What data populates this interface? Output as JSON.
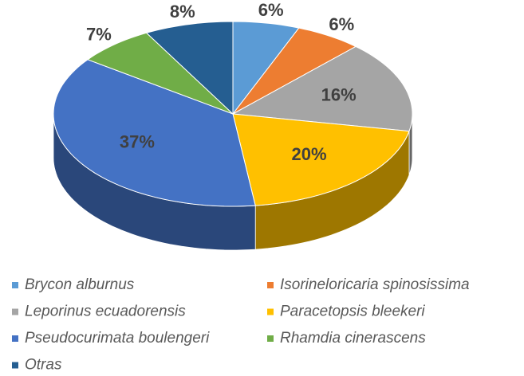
{
  "chart_data": {
    "type": "pie3d",
    "categories": [
      "Brycon alburnus",
      "Isorineloricaria spinosissima",
      "Leporinus ecuadorensis",
      "Paracetopsis bleekeri",
      "Pseudocurimata boulengeri",
      "Rhamdia cinerascens",
      "Otras"
    ],
    "values": [
      6,
      6,
      16,
      20,
      37,
      7,
      8
    ],
    "value_labels": [
      "6%",
      "6%",
      "16%",
      "20%",
      "37%",
      "7%",
      "8%"
    ],
    "colors": [
      "#5b9bd5",
      "#ed7d31",
      "#a5a5a5",
      "#ffc000",
      "#4472c4",
      "#70ad47",
      "#255e91"
    ],
    "legend": "bottom"
  }
}
